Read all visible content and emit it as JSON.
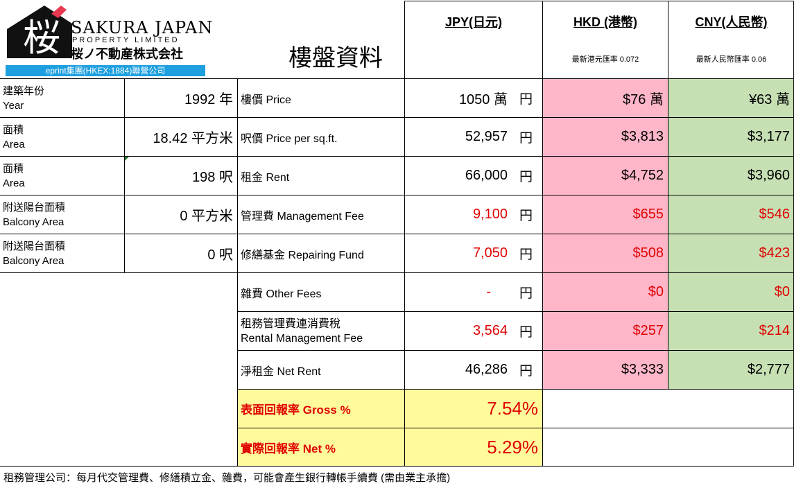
{
  "logo": {
    "kanji": "桜",
    "name_line1": "SAKURA JAPAN",
    "name_line2": "PROPERTY LIMITED",
    "name_jp": "桜ノ不動産株式会社",
    "banner": "eprint集團(HKEX:1884)聯營公司",
    "accent_color": "#e8384f",
    "banner_color": "#1e9fe0"
  },
  "title": "樓盤資料",
  "currencies": {
    "jpy": {
      "label": "JPY(日元)"
    },
    "hkd": {
      "label": "HKD (港幣)",
      "rate": "最新港元匯率 0.072"
    },
    "cny": {
      "label": "CNY(人民幣)",
      "rate": "最新人民幣匯率 0.06"
    }
  },
  "property": [
    {
      "label_zh": "建築年份",
      "label_en": "Year",
      "value": "1992 年"
    },
    {
      "label_zh": "面積",
      "label_en": "Area",
      "value": "18.42 平方米"
    },
    {
      "label_zh": "面積",
      "label_en": "Area",
      "value": "198 呎"
    },
    {
      "label_zh": "附送陽台面積",
      "label_en": "Balcony Area",
      "value": "0 平方米"
    },
    {
      "label_zh": "附送陽台面積",
      "label_en": "Balcony Area",
      "value": "0 呎"
    }
  ],
  "costs": [
    {
      "desc": "樓價 Price",
      "jpy": "1050 萬",
      "hkd": "$76 萬",
      "cny": "¥63 萬",
      "red": false
    },
    {
      "desc": "呎價 Price per sq.ft.",
      "jpy": "52,957",
      "hkd": "$3,813",
      "cny": "$3,177",
      "red": false
    },
    {
      "desc": "租金 Rent",
      "jpy": "66,000",
      "hkd": "$4,752",
      "cny": "$3,960",
      "red": false
    },
    {
      "desc": "管理費 Management Fee",
      "jpy": "9,100",
      "hkd": "$655",
      "cny": "$546",
      "red": true
    },
    {
      "desc": "修繕基金 Repairing Fund",
      "jpy": "7,050",
      "hkd": "$508",
      "cny": "$423",
      "red": true
    },
    {
      "desc": "雜費 Other Fees",
      "jpy": "-",
      "hkd": "$0",
      "cny": "$0",
      "red": true
    },
    {
      "desc": "租務管理費連消費稅",
      "desc2": "Rental Management Fee",
      "jpy": "3,564",
      "hkd": "$257",
      "cny": "$214",
      "red": true
    },
    {
      "desc": "淨租金 Net Rent",
      "jpy": "46,286",
      "hkd": "$3,333",
      "cny": "$2,777",
      "red": false
    }
  ],
  "yen_unit": "円",
  "returns": {
    "gross_label": "表面回報率 Gross %",
    "gross_value": "7.54%",
    "net_label": "實際回報率 Net %",
    "net_value": "5.29%"
  },
  "footnote": "租務管理公司：每月代交管理費、修繕積立金、雜費，可能會產生銀行轉帳手續費 (需由業主承擔)"
}
